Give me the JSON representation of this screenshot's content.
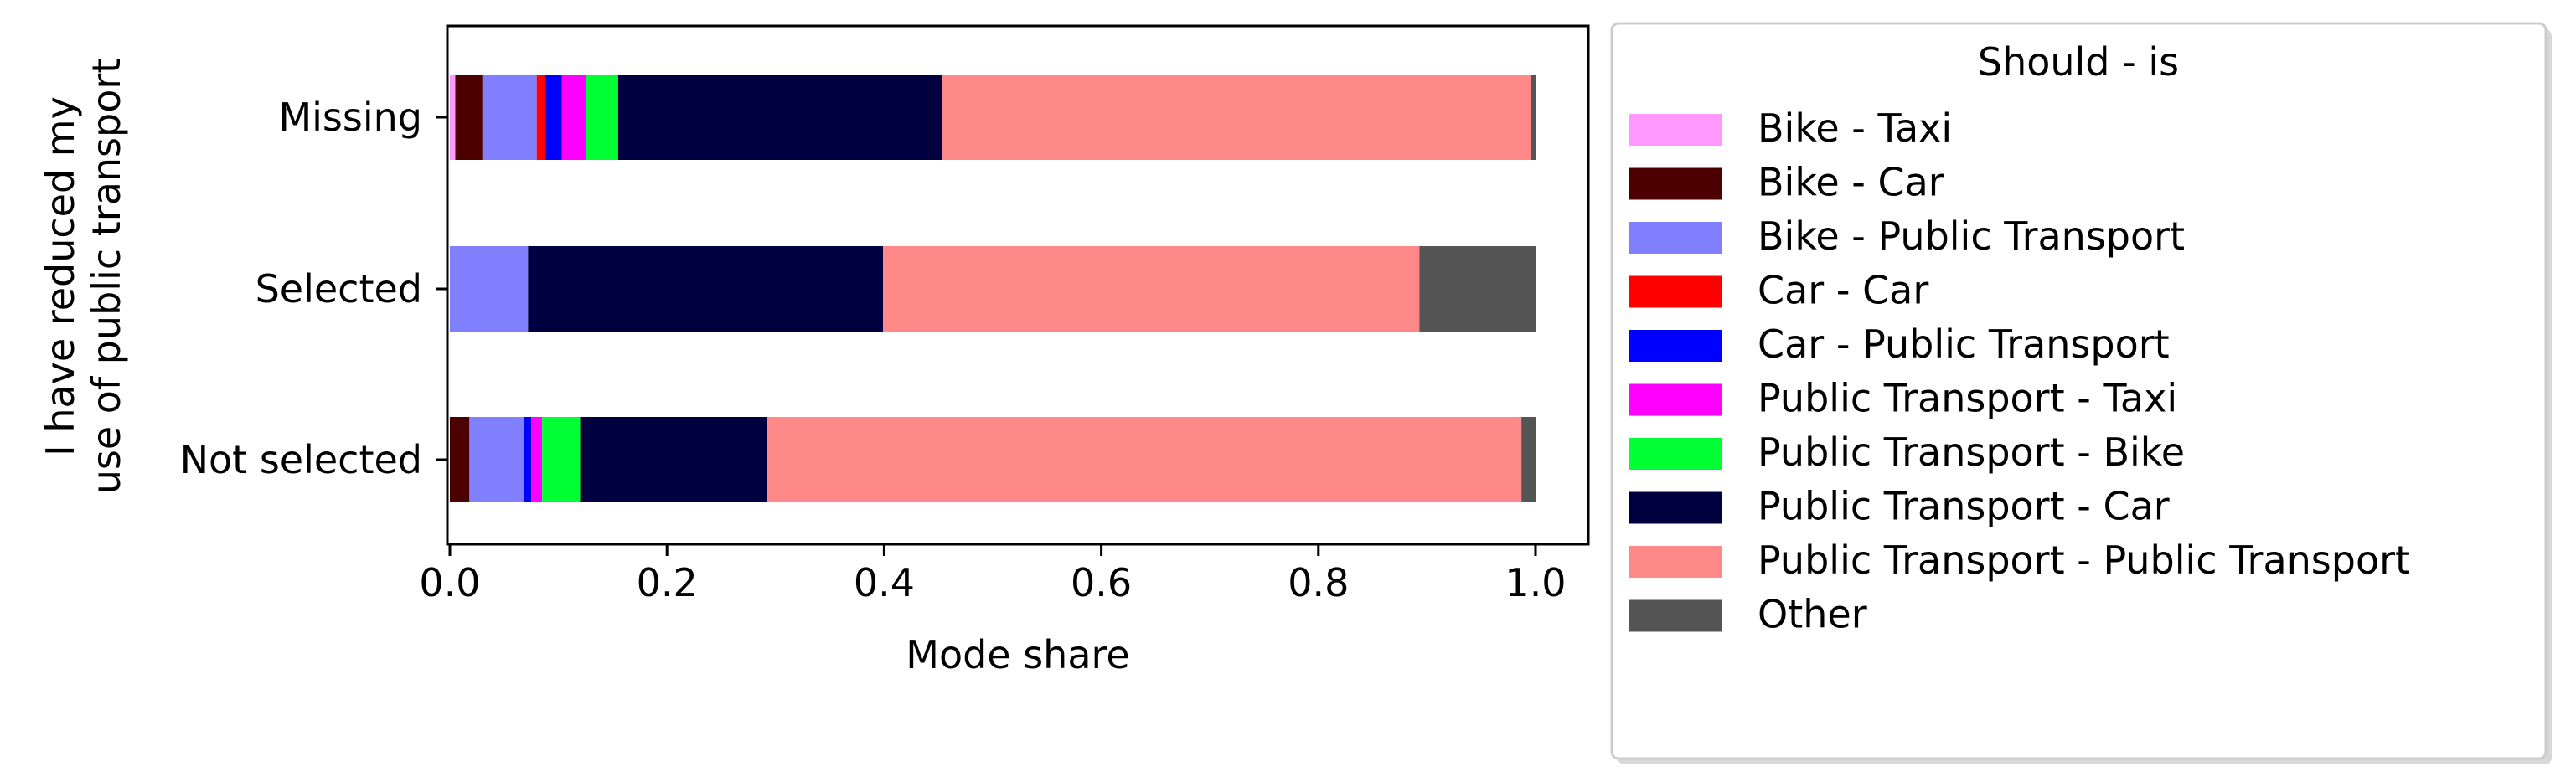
{
  "chart_data": {
    "type": "bar",
    "orientation": "horizontal",
    "stacked": true,
    "xlabel": "Mode share",
    "ylabel_lines": [
      "I have reduced my",
      "use of public transport"
    ],
    "xlim": [
      0,
      1.05
    ],
    "x_ticks": [
      "0.0",
      "0.2",
      "0.4",
      "0.6",
      "0.8",
      "1.0"
    ],
    "x_tick_values": [
      0,
      0.2,
      0.4,
      0.6,
      0.8,
      1.0
    ],
    "categories": [
      "Missing",
      "Selected",
      "Not selected"
    ],
    "legend_title": "Should - is",
    "legend_position": "outside right",
    "series": [
      {
        "name": "Bike - Taxi",
        "color": "#ff99ff",
        "values": [
          0.005,
          0.0,
          0.0
        ]
      },
      {
        "name": "Bike - Car",
        "color": "#4d0000",
        "values": [
          0.025,
          0.0,
          0.018
        ]
      },
      {
        "name": "Bike - Public Transport",
        "color": "#8080ff",
        "values": [
          0.05,
          0.072,
          0.05
        ]
      },
      {
        "name": "Car - Car",
        "color": "#ff0000",
        "values": [
          0.008,
          0.0,
          0.0
        ]
      },
      {
        "name": "Car - Public Transport",
        "color": "#0000ff",
        "values": [
          0.015,
          0.0,
          0.007
        ]
      },
      {
        "name": "Public Transport - Taxi",
        "color": "#ff00ff",
        "values": [
          0.022,
          0.0,
          0.01
        ]
      },
      {
        "name": "Public Transport - Bike",
        "color": "#00ff33",
        "values": [
          0.03,
          0.0,
          0.035
        ]
      },
      {
        "name": "Public Transport - Car",
        "color": "#000040",
        "values": [
          0.298,
          0.327,
          0.172
        ]
      },
      {
        "name": "Public Transport - Public Transport",
        "color": "#ff8888",
        "values": [
          0.543,
          0.494,
          0.695
        ]
      },
      {
        "name": "Other",
        "color": "#555555",
        "values": [
          0.004,
          0.107,
          0.013
        ]
      }
    ]
  }
}
